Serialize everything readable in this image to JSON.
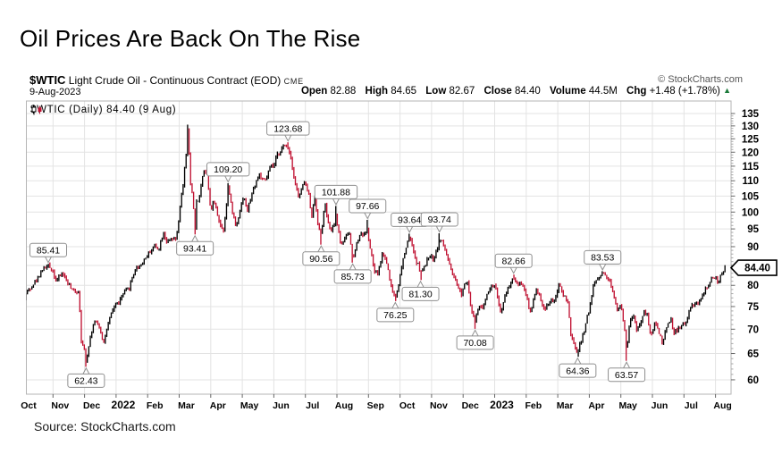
{
  "page": {
    "title": "Oil Prices Are Back On The Rise",
    "source_note": "Source: StockCharts.com"
  },
  "chart_header": {
    "symbol": "$WTIC",
    "name": "Light Crude Oil - Continuous Contract (EOD)",
    "exchange": "CME",
    "copyright": "© StockCharts.com",
    "date": "9-Aug-2023",
    "quote": [
      {
        "label": "Open",
        "value": "82.88"
      },
      {
        "label": "High",
        "value": "84.65"
      },
      {
        "label": "Low",
        "value": "82.67"
      },
      {
        "label": "Close",
        "value": "84.40"
      },
      {
        "label": "Volume",
        "value": "44.5M"
      },
      {
        "label": "Chg",
        "value": "+1.48 (+1.78%)"
      }
    ],
    "change_direction": "up"
  },
  "chart_data": {
    "type": "line",
    "title": "$WTIC Light Crude Oil - Continuous Contract (EOD) Daily",
    "legend": "$WTIC (Daily) 84.40 (9 Aug)",
    "last_price": "84.40",
    "colors": {
      "up": "#000000",
      "down": "#c01232",
      "grid": "#e3e3e3",
      "border": "#b5b5b5",
      "up_arrow": "#1b7a3a"
    },
    "y_axis": {
      "scale": "log",
      "min": 60,
      "max": 135,
      "step": 5,
      "ticks": [
        60,
        65,
        70,
        75,
        80,
        85,
        90,
        95,
        100,
        105,
        110,
        115,
        120,
        125,
        130,
        135
      ]
    },
    "x_axis": {
      "start": "Oct 2021",
      "end": "Aug 2023",
      "range_months": 22.3,
      "labels": [
        "Oct",
        "Nov",
        "Dec",
        "2022",
        "Feb",
        "Mar",
        "Apr",
        "May",
        "Jun",
        "Jul",
        "Aug",
        "Sep",
        "Oct",
        "Nov",
        "Dec",
        "2023",
        "Feb",
        "Mar",
        "Apr",
        "May",
        "Jun",
        "Jul",
        "Aug"
      ],
      "year_label_indexes": [
        3,
        15
      ]
    },
    "annotations": [
      {
        "label": "85.41",
        "t": 0.85,
        "price": 85.41,
        "kind": "high"
      },
      {
        "label": "62.43",
        "t": 2.05,
        "price": 62.43,
        "kind": "low"
      },
      {
        "label": "93.41",
        "t": 5.5,
        "price": 93.41,
        "kind": "low"
      },
      {
        "label": "109.20",
        "t": 6.55,
        "price": 109.2,
        "kind": "high"
      },
      {
        "label": "123.68",
        "t": 8.45,
        "price": 123.68,
        "kind": "high"
      },
      {
        "label": "90.56",
        "t": 9.5,
        "price": 90.56,
        "kind": "low"
      },
      {
        "label": "101.88",
        "t": 9.97,
        "price": 101.88,
        "kind": "high"
      },
      {
        "label": "85.73",
        "t": 10.5,
        "price": 85.73,
        "kind": "low"
      },
      {
        "label": "97.66",
        "t": 10.97,
        "price": 97.66,
        "kind": "high"
      },
      {
        "label": "76.25",
        "t": 11.85,
        "price": 76.25,
        "kind": "low"
      },
      {
        "label": "93.64",
        "t": 12.3,
        "price": 93.64,
        "kind": "high"
      },
      {
        "label": "81.30",
        "t": 12.65,
        "price": 81.3,
        "kind": "low"
      },
      {
        "label": "93.74",
        "t": 13.25,
        "price": 93.74,
        "kind": "high"
      },
      {
        "label": "70.08",
        "t": 14.38,
        "price": 70.08,
        "kind": "low"
      },
      {
        "label": "82.66",
        "t": 15.6,
        "price": 82.66,
        "kind": "high"
      },
      {
        "label": "64.36",
        "t": 17.63,
        "price": 64.36,
        "kind": "low"
      },
      {
        "label": "83.53",
        "t": 18.42,
        "price": 83.53,
        "kind": "high"
      },
      {
        "label": "63.57",
        "t": 19.18,
        "price": 63.57,
        "kind": "low"
      }
    ],
    "series_anchors": [
      [
        0.0,
        75.2
      ],
      [
        0.16,
        78.3
      ],
      [
        0.5,
        81.5
      ],
      [
        0.63,
        83.8
      ],
      [
        0.85,
        84.9
      ],
      [
        1.0,
        83.6
      ],
      [
        1.1,
        81.0
      ],
      [
        1.3,
        83.2
      ],
      [
        1.45,
        80.8
      ],
      [
        1.6,
        78.8
      ],
      [
        1.83,
        78.4
      ],
      [
        1.88,
        68.2
      ],
      [
        1.95,
        66.2
      ],
      [
        2.0,
        65.6
      ],
      [
        2.05,
        63.2
      ],
      [
        2.12,
        66.3
      ],
      [
        2.3,
        71.7
      ],
      [
        2.45,
        70.9
      ],
      [
        2.6,
        67.2
      ],
      [
        2.75,
        71.1
      ],
      [
        2.95,
        75.3
      ],
      [
        3.1,
        76.1
      ],
      [
        3.25,
        78.2
      ],
      [
        3.42,
        79.5
      ],
      [
        3.6,
        84.0
      ],
      [
        3.78,
        85.1
      ],
      [
        3.9,
        86.6
      ],
      [
        4.05,
        88.3
      ],
      [
        4.2,
        90.3
      ],
      [
        4.35,
        89.4
      ],
      [
        4.5,
        94.1
      ],
      [
        4.62,
        91.1
      ],
      [
        4.78,
        92.1
      ],
      [
        4.88,
        91.6
      ],
      [
        4.97,
        95.7
      ],
      [
        5.05,
        103.4
      ],
      [
        5.12,
        108.0
      ],
      [
        5.18,
        115.7
      ],
      [
        5.23,
        119.4
      ],
      [
        5.26,
        129.4
      ],
      [
        5.3,
        123.7
      ],
      [
        5.35,
        108.7
      ],
      [
        5.42,
        106.0
      ],
      [
        5.5,
        95.0
      ],
      [
        5.55,
        103.0
      ],
      [
        5.65,
        105.0
      ],
      [
        5.77,
        113.9
      ],
      [
        5.88,
        112.3
      ],
      [
        6.0,
        100.3
      ],
      [
        6.1,
        103.3
      ],
      [
        6.22,
        99.3
      ],
      [
        6.3,
        96.2
      ],
      [
        6.4,
        94.3
      ],
      [
        6.48,
        100.6
      ],
      [
        6.55,
        108.2
      ],
      [
        6.65,
        102.0
      ],
      [
        6.8,
        95.6
      ],
      [
        6.95,
        101.7
      ],
      [
        7.05,
        105.4
      ],
      [
        7.15,
        99.8
      ],
      [
        7.3,
        105.7
      ],
      [
        7.45,
        110.0
      ],
      [
        7.55,
        112.4
      ],
      [
        7.65,
        109.8
      ],
      [
        7.75,
        110.3
      ],
      [
        7.9,
        115.1
      ],
      [
        8.0,
        114.7
      ],
      [
        8.1,
        118.9
      ],
      [
        8.2,
        120.5
      ],
      [
        8.3,
        122.1
      ],
      [
        8.45,
        122.0
      ],
      [
        8.55,
        117.6
      ],
      [
        8.65,
        110.6
      ],
      [
        8.78,
        104.5
      ],
      [
        8.9,
        107.6
      ],
      [
        8.97,
        109.8
      ],
      [
        9.1,
        105.8
      ],
      [
        9.2,
        98.5
      ],
      [
        9.3,
        104.8
      ],
      [
        9.42,
        94.8
      ],
      [
        9.5,
        93.7
      ],
      [
        9.62,
        102.6
      ],
      [
        9.75,
        95.0
      ],
      [
        9.85,
        94.7
      ],
      [
        9.97,
        98.6
      ],
      [
        10.12,
        90.7
      ],
      [
        10.25,
        92.0
      ],
      [
        10.38,
        94.3
      ],
      [
        10.5,
        86.8
      ],
      [
        10.62,
        90.8
      ],
      [
        10.75,
        93.9
      ],
      [
        10.88,
        93.1
      ],
      [
        10.95,
        95.6
      ],
      [
        11.05,
        89.6
      ],
      [
        11.2,
        83.0
      ],
      [
        11.3,
        82.9
      ],
      [
        11.45,
        88.5
      ],
      [
        11.6,
        85.1
      ],
      [
        11.72,
        79.5
      ],
      [
        11.85,
        77.1
      ],
      [
        11.95,
        79.9
      ],
      [
        12.1,
        86.5
      ],
      [
        12.25,
        91.8
      ],
      [
        12.33,
        92.6
      ],
      [
        12.45,
        87.3
      ],
      [
        12.55,
        85.6
      ],
      [
        12.68,
        83.1
      ],
      [
        12.8,
        85.0
      ],
      [
        12.93,
        87.9
      ],
      [
        13.05,
        86.5
      ],
      [
        13.15,
        88.9
      ],
      [
        13.28,
        92.1
      ],
      [
        13.4,
        89.9
      ],
      [
        13.55,
        85.6
      ],
      [
        13.68,
        82.0
      ],
      [
        13.8,
        80.1
      ],
      [
        13.95,
        77.9
      ],
      [
        14.05,
        80.6
      ],
      [
        14.15,
        81.2
      ],
      [
        14.25,
        74.3
      ],
      [
        14.38,
        71.5
      ],
      [
        14.5,
        75.4
      ],
      [
        14.62,
        74.3
      ],
      [
        14.75,
        78.3
      ],
      [
        14.9,
        79.6
      ],
      [
        15.0,
        80.3
      ],
      [
        15.1,
        77.0
      ],
      [
        15.2,
        73.1
      ],
      [
        15.35,
        78.1
      ],
      [
        15.48,
        80.1
      ],
      [
        15.6,
        82.0
      ],
      [
        15.72,
        80.5
      ],
      [
        15.85,
        80.6
      ],
      [
        16.0,
        77.9
      ],
      [
        16.12,
        73.4
      ],
      [
        16.25,
        77.1
      ],
      [
        16.35,
        79.1
      ],
      [
        16.48,
        76.3
      ],
      [
        16.58,
        74.0
      ],
      [
        16.7,
        75.9
      ],
      [
        16.85,
        76.3
      ],
      [
        16.95,
        77.0
      ],
      [
        17.05,
        80.5
      ],
      [
        17.18,
        77.5
      ],
      [
        17.3,
        76.7
      ],
      [
        17.42,
        68.4
      ],
      [
        17.52,
        66.7
      ],
      [
        17.63,
        65.0
      ],
      [
        17.72,
        67.2
      ],
      [
        17.82,
        69.3
      ],
      [
        17.95,
        73.2
      ],
      [
        18.05,
        75.7
      ],
      [
        18.12,
        80.4
      ],
      [
        18.25,
        81.5
      ],
      [
        18.42,
        83.2
      ],
      [
        18.55,
        82.1
      ],
      [
        18.65,
        81.0
      ],
      [
        18.78,
        77.3
      ],
      [
        18.88,
        74.3
      ],
      [
        19.0,
        75.7
      ],
      [
        19.08,
        71.7
      ],
      [
        19.15,
        68.6
      ],
      [
        19.18,
        65.4
      ],
      [
        19.28,
        71.3
      ],
      [
        19.38,
        73.2
      ],
      [
        19.5,
        70.0
      ],
      [
        19.62,
        71.1
      ],
      [
        19.75,
        74.0
      ],
      [
        19.85,
        72.7
      ],
      [
        19.95,
        68.1
      ],
      [
        20.08,
        71.7
      ],
      [
        20.2,
        69.5
      ],
      [
        20.32,
        67.1
      ],
      [
        20.45,
        70.5
      ],
      [
        20.58,
        72.5
      ],
      [
        20.68,
        69.2
      ],
      [
        20.8,
        69.9
      ],
      [
        20.9,
        70.6
      ],
      [
        21.0,
        71.0
      ],
      [
        21.1,
        72.0
      ],
      [
        21.2,
        74.8
      ],
      [
        21.32,
        75.4
      ],
      [
        21.45,
        75.7
      ],
      [
        21.55,
        76.9
      ],
      [
        21.68,
        79.0
      ],
      [
        21.78,
        80.1
      ],
      [
        21.9,
        81.8
      ],
      [
        22.0,
        81.9
      ],
      [
        22.1,
        80.8
      ],
      [
        22.2,
        82.9
      ],
      [
        22.3,
        84.4
      ]
    ],
    "extreme_wicks": [
      [
        0.85,
        85.41
      ],
      [
        2.05,
        62.43
      ],
      [
        5.26,
        130.5
      ],
      [
        5.5,
        93.41
      ],
      [
        6.55,
        109.2
      ],
      [
        8.45,
        123.68
      ],
      [
        9.5,
        90.56
      ],
      [
        9.97,
        101.88
      ],
      [
        10.5,
        85.73
      ],
      [
        10.97,
        97.66
      ],
      [
        11.85,
        76.25
      ],
      [
        12.3,
        93.64
      ],
      [
        12.65,
        81.3
      ],
      [
        13.25,
        93.74
      ],
      [
        14.38,
        70.08
      ],
      [
        15.6,
        82.66
      ],
      [
        17.63,
        64.36
      ],
      [
        18.42,
        83.53
      ],
      [
        19.18,
        63.57
      ],
      [
        22.3,
        84.65
      ]
    ]
  }
}
